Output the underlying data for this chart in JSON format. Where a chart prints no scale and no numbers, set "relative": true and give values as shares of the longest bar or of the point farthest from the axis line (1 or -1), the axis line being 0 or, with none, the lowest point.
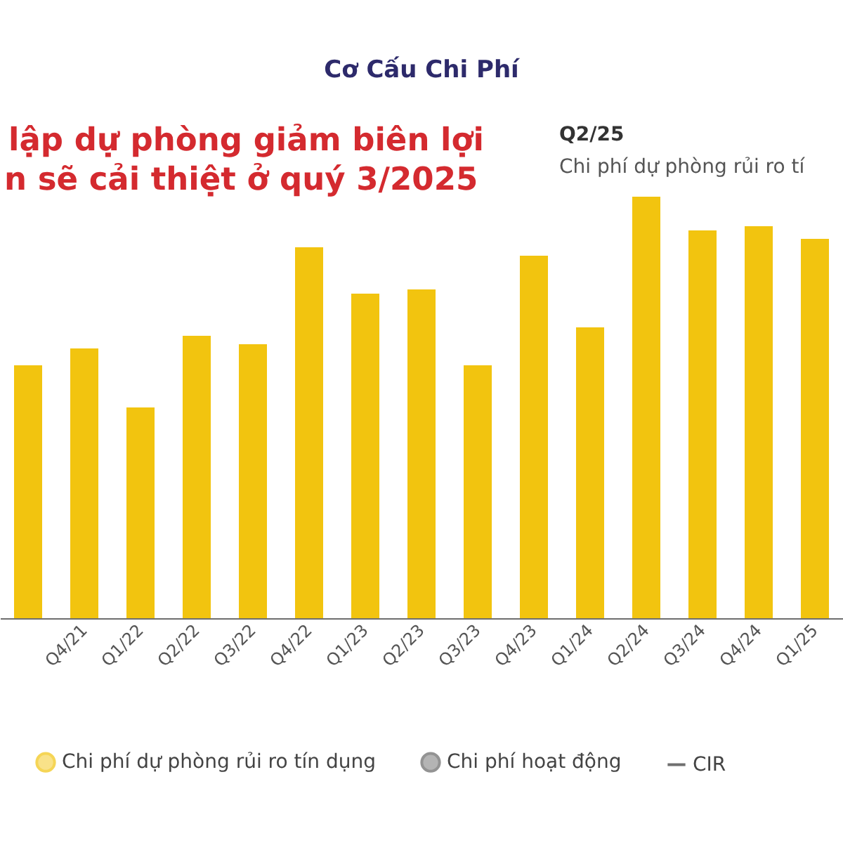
{
  "chart_data": {
    "type": "bar",
    "title": "Cơ Cấu Chi Phí",
    "relative": true,
    "categories": [
      null,
      "Q4/21",
      "Q1/22",
      "Q2/22",
      "Q3/22",
      "Q4/22",
      "Q1/23",
      "Q2/23",
      "Q3/23",
      "Q4/23",
      "Q1/24",
      "Q2/24",
      "Q3/24",
      "Q4/24",
      "Q1/25"
    ],
    "series": [
      {
        "name": "Chi phí dự phòng rủi ro tín dụng",
        "color": "#f2c40f",
        "values": [
          0.6,
          0.64,
          0.5,
          0.67,
          0.65,
          0.88,
          0.77,
          0.78,
          0.6,
          0.86,
          0.69,
          1,
          0.92,
          0.93,
          0.9
        ]
      },
      {
        "name": "Chi phí hoạt động",
        "color": "#666666",
        "values": [
          null,
          null,
          null,
          null,
          null,
          null,
          null,
          null,
          null,
          null,
          null,
          null,
          null,
          null,
          null
        ]
      },
      {
        "name": "CIR",
        "type": "line",
        "color": "#333333",
        "values": [
          null,
          null,
          null,
          null,
          null,
          null,
          null,
          null,
          null,
          null,
          null,
          null,
          null,
          null,
          null
        ]
      }
    ],
    "annotations": [
      "lập dự phòng giảm biên lợi",
      "n sẽ cải thiệt ở quý 3/2025",
      "Q2/25",
      "Chi phí dự phòng rủi ro tí"
    ],
    "legend": "bottom"
  }
}
